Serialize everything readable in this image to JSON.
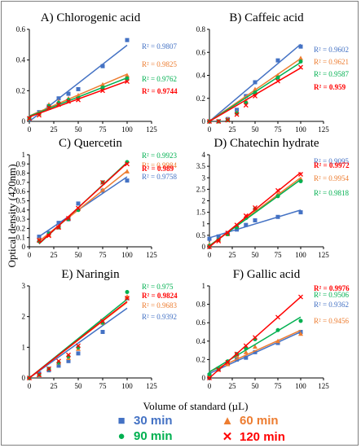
{
  "y_axis_label": "Optical density (420nm)",
  "x_axis_label": "Volume of standard (µL)",
  "legend": [
    {
      "label": "30  min",
      "color": "#4472c4",
      "marker": "square"
    },
    {
      "label": "60 min",
      "color": "#ed7d31",
      "marker": "triangle"
    },
    {
      "label": "90  min",
      "color": "#00b050",
      "marker": "circle"
    },
    {
      "label": "120 min",
      "color": "#ff0000",
      "marker": "cross"
    }
  ],
  "chart_data": [
    {
      "type": "scatter",
      "title": "A) Chlorogenic acid",
      "xlim": [
        0,
        125
      ],
      "ylim": [
        0,
        0.6
      ],
      "xticks": [
        "0",
        "25",
        "50",
        "75",
        "100",
        "125"
      ],
      "yticks": [
        "0",
        "0.2",
        "0.4",
        "0.6"
      ],
      "x": [
        0,
        10,
        20,
        30,
        40,
        50,
        75,
        100
      ],
      "series": [
        {
          "name": "30 min",
          "r2_label": "R² = 0.9807",
          "values": [
            0.02,
            0.06,
            0.1,
            0.15,
            0.18,
            0.21,
            0.36,
            0.53
          ]
        },
        {
          "name": "60 min",
          "r2_label": "R² = 0.9825",
          "values": [
            0.02,
            0.05,
            0.11,
            0.13,
            0.15,
            0.17,
            0.24,
            0.3
          ]
        },
        {
          "name": "90 min",
          "r2_label": "R² = 0.9762",
          "values": [
            0.02,
            0.05,
            0.1,
            0.12,
            0.14,
            0.15,
            0.22,
            0.28
          ]
        },
        {
          "name": "120 min",
          "r2_label": "R² = 0.9744",
          "values": [
            0.02,
            0.04,
            0.09,
            0.11,
            0.13,
            0.14,
            0.2,
            0.26
          ]
        }
      ]
    },
    {
      "type": "scatter",
      "title": "B) Caffeic acid",
      "xlim": [
        0,
        125
      ],
      "ylim": [
        0,
        0.8
      ],
      "xticks": [
        "0",
        "25",
        "50",
        "75",
        "100",
        "125"
      ],
      "yticks": [
        "0",
        "0.2",
        "0.4",
        "0.6",
        "0.8"
      ],
      "x": [
        0,
        10,
        20,
        30,
        40,
        50,
        75,
        100
      ],
      "series": [
        {
          "name": "30 min",
          "r2_label": "R² = 0.9602",
          "values": [
            0.0,
            0.0,
            0.02,
            0.1,
            0.22,
            0.34,
            0.53,
            0.65
          ]
        },
        {
          "name": "60 min",
          "r2_label": "R² = 0.9621",
          "values": [
            0.0,
            0.0,
            0.02,
            0.08,
            0.18,
            0.28,
            0.4,
            0.55
          ]
        },
        {
          "name": "90 min",
          "r2_label": "R² = 0.9587",
          "values": [
            0.0,
            0.0,
            0.01,
            0.07,
            0.16,
            0.25,
            0.38,
            0.52
          ]
        },
        {
          "name": "120 min",
          "r2_label": "R² = 0.959",
          "values": [
            0.0,
            0.0,
            0.01,
            0.06,
            0.14,
            0.22,
            0.35,
            0.47
          ]
        }
      ]
    },
    {
      "type": "scatter",
      "title": "C) Quercetin",
      "xlim": [
        0,
        125
      ],
      "ylim": [
        0,
        1
      ],
      "xticks": [
        "0",
        "25",
        "50",
        "75",
        "100",
        "125"
      ],
      "yticks": [
        "0",
        "0.1",
        "0.2",
        "0.3",
        "0.4",
        "0.5",
        "0.6",
        "0.7",
        "0.8",
        "0.9",
        "1"
      ],
      "x": [
        10,
        20,
        30,
        40,
        50,
        75,
        100
      ],
      "series": [
        {
          "name": "30 min",
          "r2_label": "R² = 0.9758",
          "values": [
            0.11,
            0.15,
            0.26,
            0.3,
            0.47,
            0.61,
            0.72
          ]
        },
        {
          "name": "60 min",
          "r2_label": "R² = 0.9984",
          "values": [
            0.08,
            0.13,
            0.22,
            0.31,
            0.41,
            0.62,
            0.82
          ]
        },
        {
          "name": "90 min",
          "r2_label": "R² = 0.9923",
          "values": [
            0.06,
            0.14,
            0.21,
            0.3,
            0.4,
            0.7,
            0.92
          ]
        },
        {
          "name": "120 min",
          "r2_label": "R² = 0.989",
          "values": [
            0.07,
            0.12,
            0.21,
            0.31,
            0.42,
            0.7,
            0.9
          ]
        }
      ]
    },
    {
      "type": "scatter",
      "title": "D) Chatechin hydrate",
      "xlim": [
        0,
        125
      ],
      "ylim": [
        0,
        4
      ],
      "xticks": [
        "0",
        "25",
        "50",
        "75",
        "100",
        "125"
      ],
      "yticks": [
        "0",
        "0.5",
        "1",
        "1.5",
        "2",
        "2.5",
        "3",
        "3.5",
        "4"
      ],
      "x": [
        0,
        10,
        20,
        30,
        40,
        50,
        75,
        100
      ],
      "series": [
        {
          "name": "30 min",
          "r2_label": "R² = 0.9095",
          "values": [
            0.35,
            0.45,
            0.6,
            0.75,
            0.95,
            1.15,
            1.3,
            1.5
          ]
        },
        {
          "name": "60 min",
          "r2_label": "R² = 0.9954",
          "values": [
            0.1,
            0.3,
            0.55,
            0.9,
            1.3,
            1.6,
            2.3,
            2.95
          ]
        },
        {
          "name": "90 min",
          "r2_label": "R² = 0.9818",
          "values": [
            0.05,
            0.3,
            0.55,
            0.85,
            1.25,
            1.65,
            2.2,
            2.85
          ]
        },
        {
          "name": "120 min",
          "r2_label": "R² = 0.9972",
          "values": [
            0.0,
            0.25,
            0.6,
            0.95,
            1.35,
            1.7,
            2.45,
            3.15
          ]
        }
      ]
    },
    {
      "type": "scatter",
      "title": "E) Naringin",
      "xlim": [
        0,
        125
      ],
      "ylim": [
        0,
        3
      ],
      "xticks": [
        "0",
        "25",
        "50",
        "75",
        "100",
        "125"
      ],
      "yticks": [
        "0",
        "1",
        "2",
        "3"
      ],
      "x": [
        0,
        10,
        20,
        30,
        40,
        50,
        75,
        100
      ],
      "series": [
        {
          "name": "30 min",
          "r2_label": "R² = 0.9392",
          "values": [
            0.0,
            0.15,
            0.25,
            0.4,
            0.55,
            0.8,
            1.5,
            2.6
          ]
        },
        {
          "name": "60 min",
          "r2_label": "R² = 0.9683",
          "values": [
            0.0,
            0.1,
            0.3,
            0.5,
            0.65,
            0.95,
            1.8,
            2.65
          ]
        },
        {
          "name": "90 min",
          "r2_label": "R² = 0.975",
          "values": [
            0.0,
            0.1,
            0.3,
            0.5,
            0.7,
            1.0,
            1.8,
            2.8
          ]
        },
        {
          "name": "120 min",
          "r2_label": "R² = 0.9824",
          "values": [
            0.0,
            0.1,
            0.3,
            0.55,
            0.75,
            1.05,
            1.85,
            2.6
          ]
        }
      ]
    },
    {
      "type": "scatter",
      "title": "F) Gallic acid",
      "xlim": [
        0,
        125
      ],
      "ylim": [
        0,
        1
      ],
      "xticks": [
        "0",
        "25",
        "50",
        "75",
        "100",
        "125"
      ],
      "yticks": [
        "0",
        "0.2",
        "0.4",
        "0.6",
        "0.8",
        "1"
      ],
      "x": [
        0,
        10,
        20,
        30,
        40,
        50,
        75,
        100
      ],
      "series": [
        {
          "name": "30 min",
          "r2_label": "R² = 0.9362",
          "values": [
            0.03,
            0.1,
            0.15,
            0.2,
            0.22,
            0.28,
            0.38,
            0.5
          ]
        },
        {
          "name": "60 min",
          "r2_label": "R² = 0.9456",
          "values": [
            0.03,
            0.09,
            0.15,
            0.24,
            0.28,
            0.34,
            0.4,
            0.48
          ]
        },
        {
          "name": "90 min",
          "r2_label": "R² = 0.9506",
          "values": [
            0.04,
            0.1,
            0.18,
            0.26,
            0.32,
            0.42,
            0.52,
            0.62
          ]
        },
        {
          "name": "120 min",
          "r2_label": "R² = 0.9976",
          "values": [
            0.0,
            0.09,
            0.17,
            0.26,
            0.35,
            0.44,
            0.66,
            0.88
          ]
        }
      ]
    }
  ]
}
